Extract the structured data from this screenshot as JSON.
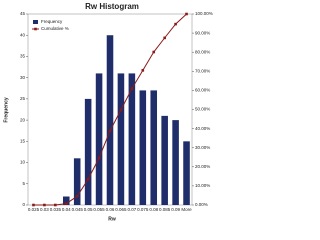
{
  "chart_data": {
    "type": "pareto",
    "title": "Rw Histogram",
    "x_label": "Rw",
    "y_label": "Frequency",
    "categories": [
      "0.025",
      "0.03",
      "0.035",
      "0.04",
      "0.045",
      "0.05",
      "0.055",
      "0.06",
      "0.065",
      "0.07",
      "0.075",
      "0.08",
      "0.085",
      "0.09",
      "More"
    ],
    "series": [
      {
        "name": "Frequency",
        "color": "#1f2d6b",
        "kind": "bar",
        "values": [
          0,
          0,
          0,
          2,
          11,
          25,
          31,
          40,
          31,
          31,
          27,
          27,
          21,
          20,
          15
        ]
      },
      {
        "name": "Cumulative %",
        "color": "#8b1a1a",
        "kind": "line",
        "axis": "y2",
        "values": [
          0,
          0,
          0,
          0.7,
          4.6,
          13.5,
          24.6,
          38.8,
          49.8,
          60.9,
          70.5,
          80.1,
          87.5,
          94.7,
          100
        ]
      }
    ],
    "ylim": [
      0,
      45
    ],
    "yticks": [
      0,
      5,
      10,
      15,
      20,
      25,
      30,
      35,
      40,
      45
    ],
    "y2lim": [
      0,
      100
    ],
    "y2ticks": [
      {
        "value": 0,
        "label": "0.00%"
      },
      {
        "value": 10,
        "label": "10.00%"
      },
      {
        "value": 20,
        "label": "20.00%"
      },
      {
        "value": 30,
        "label": "30.00%"
      },
      {
        "value": 40,
        "label": "40.00%"
      },
      {
        "value": 50,
        "label": "50.00%"
      },
      {
        "value": 60,
        "label": "60.00%"
      },
      {
        "value": 70,
        "label": "70.00%"
      },
      {
        "value": 80,
        "label": "80.00%"
      },
      {
        "value": 90,
        "label": "90.00%"
      },
      {
        "value": 100,
        "label": "100.00%"
      }
    ],
    "legend_position": "upper-left"
  }
}
